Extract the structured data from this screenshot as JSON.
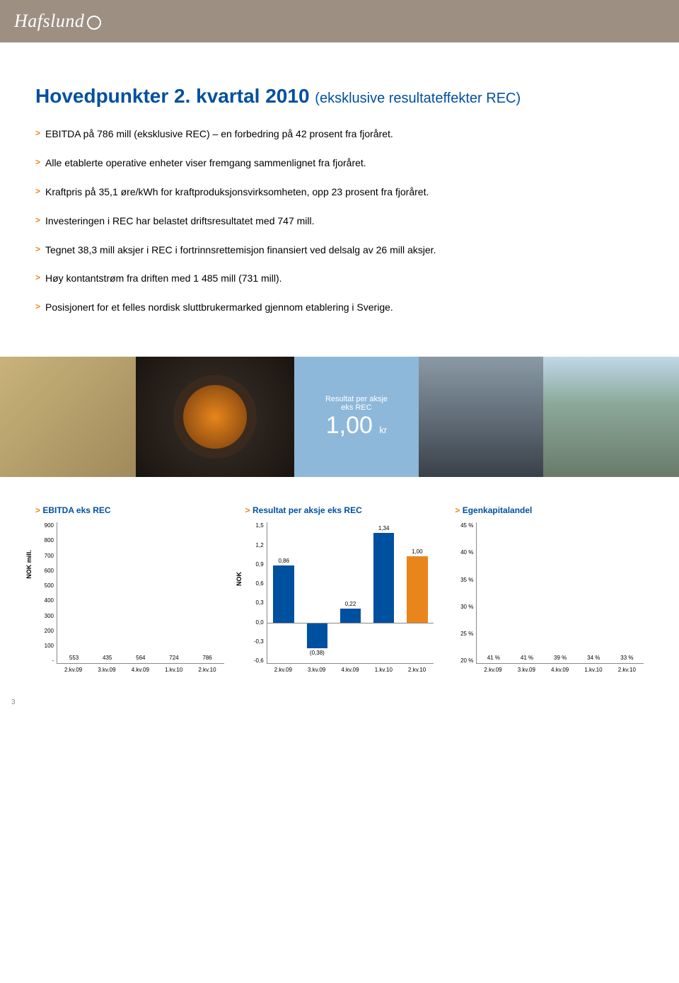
{
  "header": {
    "logo": "Hafslund"
  },
  "title_main": "Hovedpunkter 2. kvartal 2010",
  "title_sub": "(eksklusive resultateffekter REC)",
  "bullets": [
    "EBITDA på 786 mill (eksklusive REC) – en forbedring på 42 prosent fra fjoråret.",
    "Alle etablerte operative enheter viser fremgang sammenlignet fra fjoråret.",
    "Kraftpris på 35,1 øre/kWh for kraftproduksjonsvirksomheten, opp 23 prosent fra fjoråret.",
    "Investeringen i REC har belastet driftsresultatet med 747 mill.",
    "Tegnet 38,3 mill aksjer i REC i fortrinnsrettemisjon finansiert ved delsalg av 26 mill aksjer.",
    "Høy kontantstrøm fra driften med 1 485 mill (731 mill).",
    "Posisjonert for et felles nordisk sluttbrukermarked gjennom etablering i Sverige."
  ],
  "kpi": {
    "label1": "Resultat per aksje",
    "label2": "eks REC",
    "value": "1,00",
    "unit": "kr",
    "bg": "#8eb8d9",
    "text_color": "#ffffff"
  },
  "chart1": {
    "title": "EBITDA eks REC",
    "type": "bar",
    "y_label": "NOK mill.",
    "ylim": [
      0,
      900
    ],
    "ystep": 100,
    "categories": [
      "2.kv.09",
      "3.kv.09",
      "4.kv.09",
      "1.kv.10",
      "2.kv.10"
    ],
    "values": [
      553,
      435,
      564,
      724,
      786
    ],
    "colors": [
      "#0050a0",
      "#0050a0",
      "#0050a0",
      "#0050a0",
      "#e8861c"
    ],
    "label_fontsize": 8
  },
  "chart2": {
    "title": "Resultat per aksje eks REC",
    "type": "bar",
    "y_label": "NOK",
    "ylim": [
      -0.6,
      1.5
    ],
    "ystep": 0.3,
    "categories": [
      "2.kv.09",
      "3.kv.09",
      "4.kv.09",
      "1.kv.10",
      "2.kv.10"
    ],
    "values": [
      0.86,
      -0.38,
      0.22,
      1.34,
      1.0
    ],
    "value_labels": [
      "0,86",
      "(0,38)",
      "0,22",
      "1,34",
      "1,00"
    ],
    "colors": [
      "#0050a0",
      "#0050a0",
      "#0050a0",
      "#0050a0",
      "#e8861c"
    ],
    "label_fontsize": 8
  },
  "chart3": {
    "title": "Egenkapitalandel",
    "type": "bar",
    "y_label": "",
    "ylim": [
      20,
      45
    ],
    "ystep": 5,
    "categories": [
      "2.kv.09",
      "3.kv.09",
      "4.kv.09",
      "1.kv.10",
      "2.kv.10"
    ],
    "values": [
      41,
      41,
      39,
      34,
      33
    ],
    "value_labels": [
      "41 %",
      "41 %",
      "39 %",
      "34 %",
      "33 %"
    ],
    "colors": [
      "#0050a0",
      "#0050a0",
      "#0050a0",
      "#0050a0",
      "#e8861c"
    ],
    "label_fontsize": 8
  },
  "page_number": "3"
}
